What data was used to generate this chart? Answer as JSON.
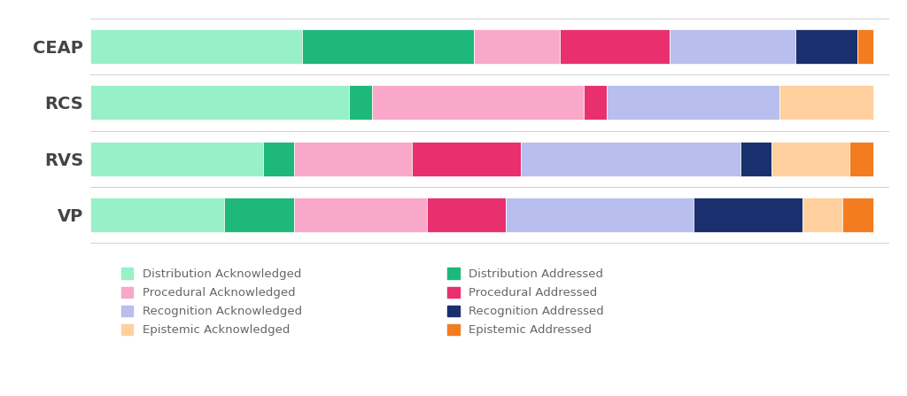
{
  "categories": [
    "CEAP",
    "RCS",
    "RVS",
    "VP"
  ],
  "segments": [
    "Distribution Acknowledged",
    "Distribution Addressed",
    "Procedural Acknowledged",
    "Procedural Addressed",
    "Recognition Acknowledged",
    "Recognition Addressed",
    "Epistemic Acknowledged",
    "Epistemic Addressed"
  ],
  "colors": [
    "#98f0c8",
    "#1db87a",
    "#f9a8c9",
    "#e8306e",
    "#b8bfee",
    "#1a2f6e",
    "#ffd09e",
    "#f47c20"
  ],
  "values": {
    "CEAP": [
      27,
      22,
      11,
      14,
      16,
      8,
      0,
      2
    ],
    "RCS": [
      33,
      3,
      27,
      3,
      22,
      0,
      12,
      0
    ],
    "RVS": [
      22,
      4,
      15,
      14,
      28,
      4,
      10,
      3
    ],
    "VP": [
      17,
      9,
      17,
      10,
      24,
      14,
      5,
      4
    ]
  },
  "background_color": "#ffffff",
  "bar_height": 0.62,
  "figsize": [
    10.24,
    4.47
  ],
  "dpi": 100
}
